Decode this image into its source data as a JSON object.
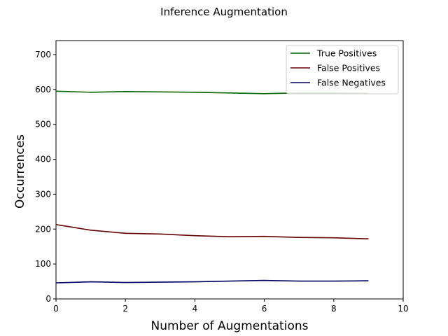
{
  "chart_data": {
    "type": "line",
    "title": "Inference Augmentation",
    "xlabel": "Number of Augmentations",
    "ylabel": "Occurrences",
    "xlim": [
      0,
      10
    ],
    "ylim": [
      0,
      740
    ],
    "xticks": [
      0,
      2,
      4,
      6,
      8,
      10
    ],
    "yticks": [
      0,
      100,
      200,
      300,
      400,
      500,
      600,
      700
    ],
    "grid": false,
    "legend_position": "top-right",
    "x": [
      0,
      1,
      2,
      3,
      4,
      5,
      6,
      7,
      8,
      9
    ],
    "series": [
      {
        "name": "True Positives",
        "color": "#006400",
        "values": [
          595,
          592,
          594,
          593,
          592,
          590,
          588,
          590,
          590,
          589
        ]
      },
      {
        "name": "False Positives",
        "color": "#640000",
        "values": [
          213,
          197,
          188,
          186,
          181,
          178,
          179,
          176,
          175,
          172
        ]
      },
      {
        "name": "False Negatives",
        "color": "#000064",
        "values": [
          46,
          49,
          47,
          48,
          49,
          51,
          53,
          51,
          51,
          52
        ]
      }
    ]
  }
}
